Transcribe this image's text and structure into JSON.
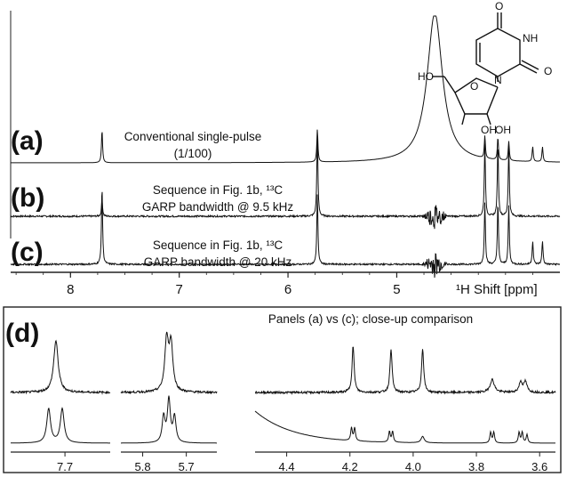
{
  "figure": {
    "panel_a_label": "(a)",
    "panel_b_label": "(b)",
    "panel_c_label": "(c)",
    "panel_d_label": "(d)",
    "caption_a_line1": "Conventional single-pulse",
    "caption_a_line2": "(1/100)",
    "caption_b_line1": "Sequence in Fig. 1b, ¹³C",
    "caption_b_line2": "GARP bandwidth @ 9.5 kHz",
    "caption_c_line1": "Sequence in Fig. 1b, ¹³C",
    "caption_c_line2": "GARP bandwidth @ 20 kHz",
    "caption_d": "Panels (a) vs (c); close-up comparison",
    "x_axis_label": "¹H Shift [ppm]",
    "molecule_labels": [
      "O",
      "NH",
      "O",
      "N",
      "HO",
      "O",
      "OH",
      "OH"
    ]
  },
  "chart_data": [
    {
      "type": "line",
      "panel": "top",
      "xlabel": "¹H Shift [ppm]",
      "xlim": [
        8.55,
        3.5
      ],
      "x_reversed": true,
      "ticks": [
        "8",
        "7",
        "6",
        "5"
      ],
      "tick_values": [
        8,
        7,
        6,
        5
      ],
      "series": [
        {
          "label": "(a)",
          "peaks_ppm": [
            7.71,
            5.73,
            4.65,
            4.19,
            4.07,
            3.97,
            3.75,
            3.66
          ],
          "relative_heights": [
            0.22,
            0.22,
            1.0,
            0.15,
            0.15,
            0.13,
            0.1,
            0.1
          ]
        },
        {
          "label": "(b)",
          "peaks_ppm": [
            7.71,
            5.73,
            4.19,
            4.07,
            3.97
          ],
          "relative_heights": [
            0.2,
            1.0,
            0.9,
            0.9,
            0.85
          ]
        },
        {
          "label": "(c)",
          "peaks_ppm": [
            7.71,
            5.73,
            4.19,
            4.07,
            3.97,
            3.75,
            3.66
          ],
          "relative_heights": [
            1.0,
            0.9,
            0.8,
            0.8,
            0.75,
            0.3,
            0.3
          ]
        }
      ]
    },
    {
      "type": "line",
      "panel": "(d) left",
      "xlim": [
        7.76,
        7.65
      ],
      "ticks": [
        "7.7"
      ],
      "tick_values": [
        7.7
      ]
    },
    {
      "type": "line",
      "panel": "(d) middle",
      "xlim": [
        5.85,
        5.63
      ],
      "ticks": [
        "5.8",
        "5.7"
      ],
      "tick_values": [
        5.8,
        5.7
      ]
    },
    {
      "type": "line",
      "panel": "(d) right",
      "xlim": [
        4.5,
        3.55
      ],
      "ticks": [
        "4.4",
        "4.2",
        "4.0",
        "3.8",
        "3.6"
      ],
      "tick_values": [
        4.4,
        4.2,
        4.0,
        3.8,
        3.6
      ]
    }
  ]
}
